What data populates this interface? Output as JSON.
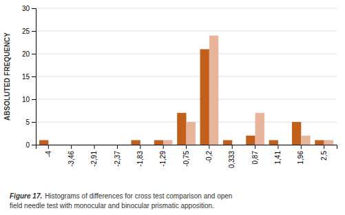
{
  "chart_data": {
    "type": "bar",
    "ylabel": "ABSOLUTED FREQUENCY",
    "categories": [
      "-4",
      "-3,46",
      "-2,91",
      "-2,37",
      "-1,83",
      "-1,29",
      "-0,75",
      "-0,2",
      "0,333",
      "0,87",
      "1,41",
      "1,96",
      "2,5"
    ],
    "series": [
      {
        "color": "#C0601A",
        "values": [
          1,
          0,
          0,
          0,
          1,
          1,
          7,
          21,
          1,
          2,
          1,
          5,
          1
        ]
      },
      {
        "color": "#E8B49A",
        "values": [
          0,
          0,
          0,
          0,
          0,
          1,
          5,
          24,
          0,
          7,
          0,
          2,
          1
        ]
      }
    ],
    "ylim": [
      0,
      30
    ],
    "yticks": [
      0,
      5,
      10,
      15,
      20,
      25,
      30
    ],
    "grid": true,
    "annotations": [
      "Figure 17.",
      "Histograms of differences for cross test comparison and open",
      "field needle test with monocular and binocular prismatic apposition."
    ]
  }
}
